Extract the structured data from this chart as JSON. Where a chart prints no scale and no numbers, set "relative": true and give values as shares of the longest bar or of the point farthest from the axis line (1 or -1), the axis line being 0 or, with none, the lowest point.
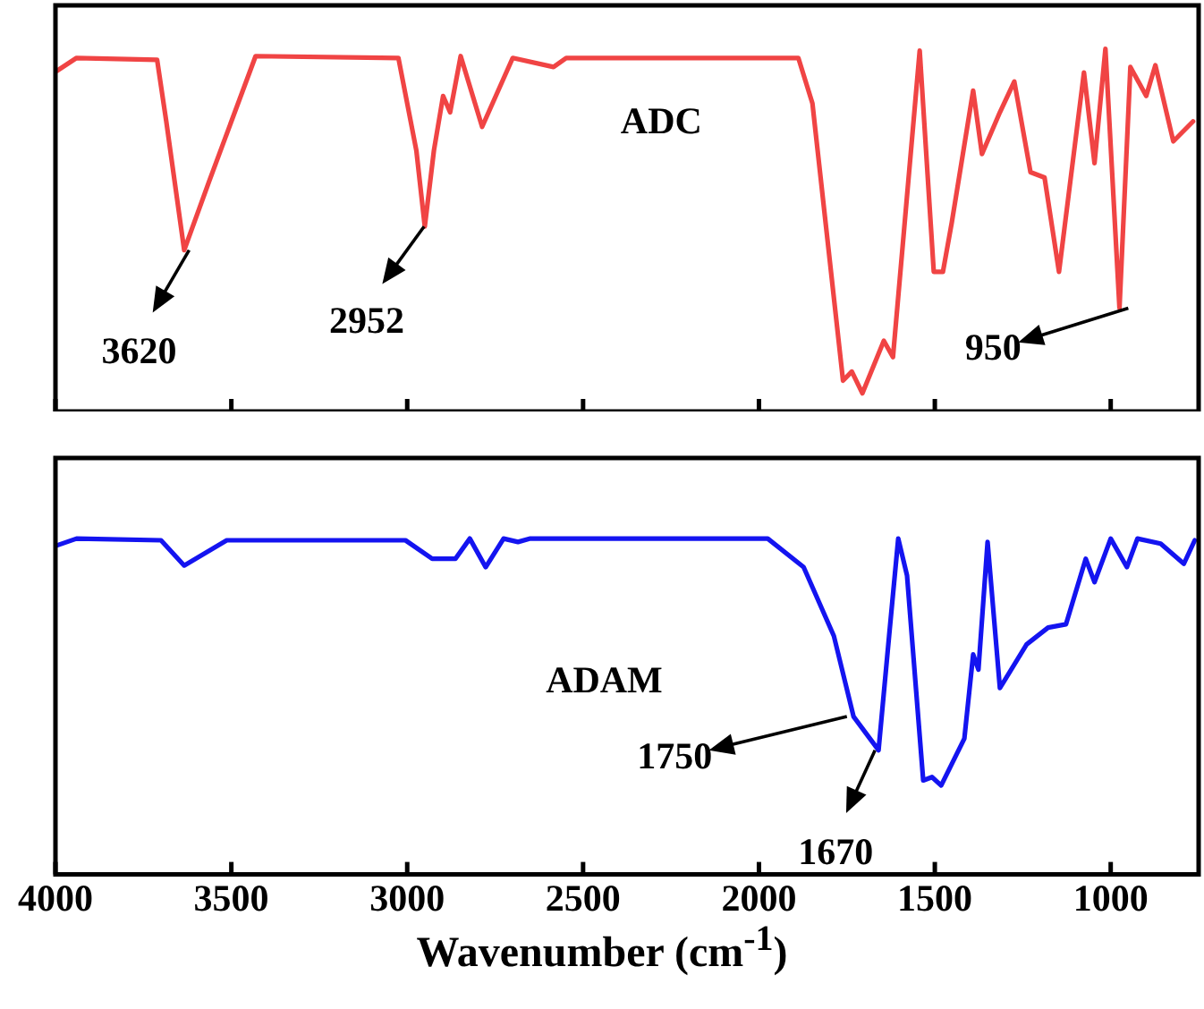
{
  "chart_data": [
    {
      "type": "line",
      "relative": true,
      "xlim": [
        4000,
        750
      ],
      "xticks": [
        4000,
        3500,
        3000,
        2500,
        2000,
        1500,
        1000
      ],
      "tick_labels": false,
      "grid": false,
      "legend": false,
      "marker": "none",
      "line_style": "solid",
      "series": [
        {
          "name": "ADC",
          "color": "#f04444",
          "x": [
            3995,
            3940,
            3711,
            3685,
            3634,
            3563,
            3431,
            3025,
            2974,
            2950,
            2924,
            2898,
            2878,
            2848,
            2787,
            2700,
            2584,
            2548,
            2432,
            1888,
            1848,
            1761,
            1736,
            1706,
            1645,
            1619,
            1543,
            1503,
            1477,
            1452,
            1391,
            1366,
            1315,
            1274,
            1228,
            1188,
            1147,
            1076,
            1046,
            1015,
            975,
            944,
            899,
            873,
            822,
            766
          ],
          "values": [
            0.94,
            0.975,
            0.97,
            0.8,
            0.445,
            0.635,
            0.98,
            0.975,
            0.72,
            0.51,
            0.72,
            0.87,
            0.825,
            0.98,
            0.785,
            0.975,
            0.95,
            0.975,
            0.975,
            0.975,
            0.85,
            0.085,
            0.11,
            0.05,
            0.195,
            0.15,
            0.995,
            0.385,
            0.385,
            0.52,
            0.885,
            0.71,
            0.825,
            0.91,
            0.66,
            0.645,
            0.385,
            0.935,
            0.685,
            1,
            0.285,
            0.95,
            0.87,
            0.955,
            0.745,
            0.8
          ]
        }
      ],
      "annotations": [
        {
          "text": "3620",
          "x": 3620,
          "y": 0.445
        },
        {
          "text": "2952",
          "x": 2952,
          "y": 0.51
        },
        {
          "text": "950",
          "x": 950,
          "y": 0.285
        }
      ]
    },
    {
      "type": "line",
      "relative": true,
      "xlim": [
        4000,
        750
      ],
      "xticks": [
        4000,
        3500,
        3000,
        2500,
        2000,
        1500,
        1000
      ],
      "tick_labels": "x",
      "xlabel": "Wavenumber (cm$^{-1}$)",
      "grid": false,
      "legend": false,
      "marker": "none",
      "line_style": "solid",
      "series": [
        {
          "name": "ADAM",
          "color": "#1414f0",
          "x": [
            3995,
            3940,
            3700,
            3634,
            3513,
            3005,
            2929,
            2863,
            2822,
            2777,
            2726,
            2685,
            2650,
            2432,
            1975,
            1873,
            1787,
            1731,
            1660,
            1630,
            1604,
            1579,
            1533,
            1508,
            1482,
            1416,
            1391,
            1376,
            1350,
            1315,
            1239,
            1178,
            1127,
            1071,
            1046,
            1000,
            954,
            924,
            858,
            792,
            761
          ],
          "values": [
            0.98,
            1,
            0.995,
            0.92,
            0.995,
            0.995,
            0.94,
            0.94,
            1,
            0.915,
            1,
            0.99,
            1,
            1,
            1,
            0.915,
            0.71,
            0.47,
            0.37,
            0.71,
            1,
            0.89,
            0.28,
            0.29,
            0.265,
            0.405,
            0.655,
            0.61,
            0.99,
            0.555,
            0.685,
            0.735,
            0.745,
            0.94,
            0.87,
            1,
            0.915,
            1,
            0.985,
            0.925,
            0.995
          ]
        }
      ],
      "annotations": [
        {
          "text": "1750",
          "x": 1750,
          "y": 0.47
        },
        {
          "text": "1670",
          "x": 1670,
          "y": 0.37
        }
      ]
    }
  ]
}
